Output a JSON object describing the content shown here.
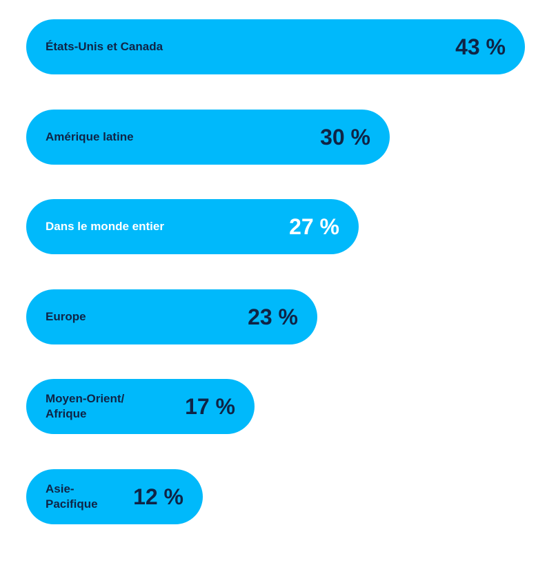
{
  "chart_data": {
    "type": "bar",
    "orientation": "horizontal",
    "categories": [
      "États-Unis et Canada",
      "Amérique latine",
      "Dans le monde entier",
      "Europe",
      "Moyen-Orient/\nAfrique",
      "Asie-\nPacifique"
    ],
    "values": [
      43,
      30,
      27,
      23,
      17,
      12
    ],
    "value_labels": [
      "43 %",
      "30 %",
      "27 %",
      "23 %",
      "17 %",
      "12 %"
    ],
    "label_colors": [
      "#0f2446",
      "#0f2446",
      "#ffffff",
      "#0f2446",
      "#0f2446",
      "#0f2446"
    ],
    "value_colors": [
      "#0f2446",
      "#0f2446",
      "#ffffff",
      "#0f2446",
      "#0f2446",
      "#0f2446"
    ],
    "bar_color": "#00b9fb",
    "xlim": [
      0,
      43
    ],
    "grid": false,
    "legend": "none"
  }
}
